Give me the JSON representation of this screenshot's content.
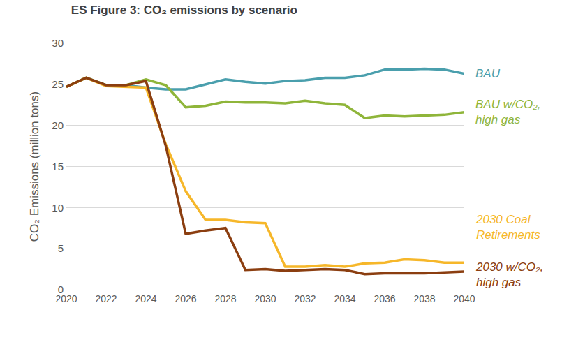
{
  "chart_data": {
    "type": "line",
    "title": "ES Figure 3: CO₂ emissions by scenario",
    "y_label": "CO₂ Emissions (million tons)",
    "x": [
      2020,
      2021,
      2022,
      2023,
      2024,
      2025,
      2026,
      2027,
      2028,
      2029,
      2030,
      2031,
      2032,
      2033,
      2034,
      2035,
      2036,
      2037,
      2038,
      2039,
      2040
    ],
    "xlim": [
      2020,
      2040
    ],
    "xticks": [
      2020,
      2022,
      2024,
      2026,
      2028,
      2030,
      2032,
      2034,
      2036,
      2038,
      2040
    ],
    "ylim": [
      0,
      30
    ],
    "yticks": [
      0,
      5,
      10,
      15,
      20,
      25,
      30
    ],
    "grid": true,
    "series": [
      {
        "name": "BAU",
        "color": "#4a9fad",
        "values": [
          24.7,
          25.8,
          24.9,
          24.9,
          24.6,
          24.4,
          24.4,
          25.0,
          25.6,
          25.3,
          25.1,
          25.4,
          25.5,
          25.8,
          25.8,
          26.1,
          26.8,
          26.8,
          26.9,
          26.8,
          26.3
        ]
      },
      {
        "name": "BAU w/CO₂, high gas",
        "color": "#8fb53a",
        "values": [
          24.7,
          25.8,
          24.9,
          24.9,
          25.6,
          24.9,
          22.2,
          22.4,
          22.9,
          22.8,
          22.8,
          22.7,
          23.0,
          22.7,
          22.5,
          20.9,
          21.2,
          21.1,
          21.2,
          21.3,
          21.6
        ]
      },
      {
        "name": "2030 Coal Retirements",
        "color": "#f6b72a",
        "values": [
          24.7,
          25.8,
          24.8,
          24.7,
          24.6,
          17.7,
          12.0,
          8.5,
          8.5,
          8.2,
          8.1,
          2.8,
          2.8,
          3.0,
          2.8,
          3.2,
          3.3,
          3.7,
          3.6,
          3.3,
          3.3
        ]
      },
      {
        "name": "2030 w/CO₂, high gas",
        "color": "#8b3e10",
        "values": [
          24.7,
          25.8,
          24.9,
          24.9,
          25.4,
          17.5,
          6.8,
          7.2,
          7.5,
          2.4,
          2.5,
          2.3,
          2.4,
          2.5,
          2.4,
          1.9,
          2.0,
          2.0,
          2.0,
          2.1,
          2.2
        ]
      }
    ]
  }
}
